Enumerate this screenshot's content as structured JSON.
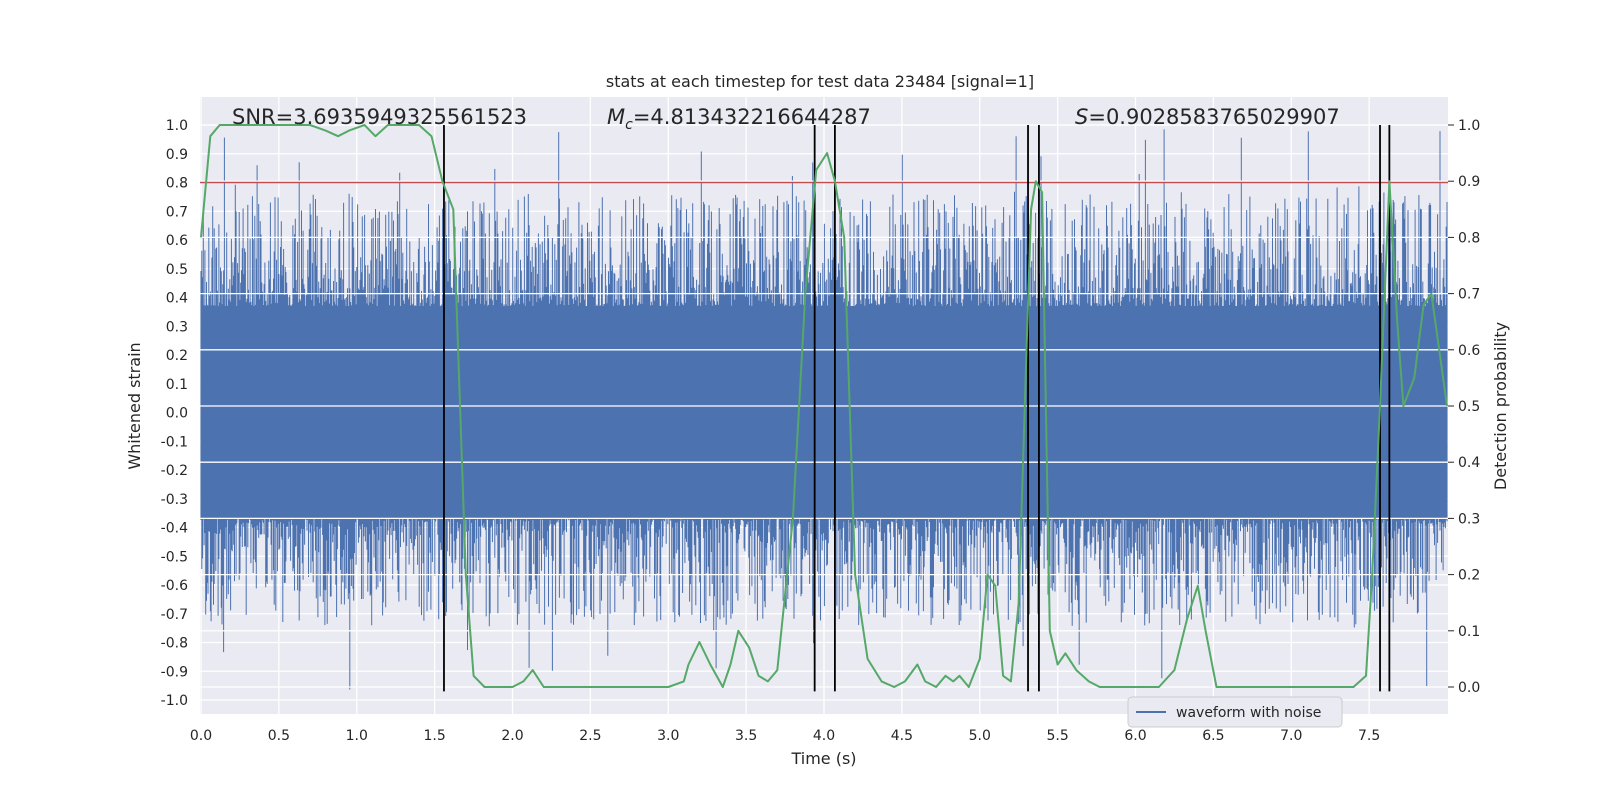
{
  "chart_data": {
    "type": "line",
    "title": "stats at each timestep for test data 23484 [signal=1]",
    "xlabel": "Time (s)",
    "ylabel": "Whitened strain",
    "y2label": "Detection probability",
    "xlim": [
      0.0,
      8.0
    ],
    "ylim": [
      -1.1,
      1.1
    ],
    "y2lim": [
      -0.05,
      1.05
    ],
    "xticks": [
      0.0,
      0.5,
      1.0,
      1.5,
      2.0,
      2.5,
      3.0,
      3.5,
      4.0,
      4.5,
      5.0,
      5.5,
      6.0,
      6.5,
      7.0,
      7.5
    ],
    "xtick_labels": [
      "0.0",
      "0.5",
      "1.0",
      "1.5",
      "2.0",
      "2.5",
      "3.0",
      "3.5",
      "4.0",
      "4.5",
      "5.0",
      "5.5",
      "6.0",
      "6.5",
      "7.0",
      "7.5"
    ],
    "yticks": [
      1.0,
      0.9,
      0.8,
      0.7,
      0.6,
      0.5,
      0.4,
      0.3,
      0.2,
      0.1,
      0.0,
      -0.1,
      -0.2,
      -0.3,
      -0.4,
      -0.5,
      -0.6,
      -0.7,
      -0.8,
      -0.9,
      -1.0
    ],
    "ytick_labels": [
      "1.0",
      "0.9",
      "0.8",
      "0.7",
      "0.6",
      "0.5",
      "0.4",
      "0.3",
      "0.2",
      "0.1",
      "0.0",
      "-0.1",
      "-0.2",
      "-0.3",
      "-0.4",
      "-0.5",
      "-0.6",
      "-0.7",
      "-0.8",
      "-0.9",
      "-1.0"
    ],
    "y2ticks": [
      1.0,
      0.9,
      0.8,
      0.7,
      0.6,
      0.5,
      0.4,
      0.3,
      0.2,
      0.1,
      0.0
    ],
    "y2tick_labels": [
      "1.0",
      "0.9",
      "0.8",
      "0.7",
      "0.6",
      "0.5",
      "0.4",
      "0.3",
      "0.2",
      "0.1",
      "0.0"
    ],
    "threshold": 0.8,
    "stats": {
      "snr": "SNR=3.6935949325561523",
      "mc_symbol": "M",
      "mc_sub": "c",
      "mc_value": "=4.813432216644287",
      "s_symbol": "S",
      "s_value": "=0.9028583765029907"
    },
    "event_lines": [
      1.56,
      3.94,
      4.07,
      5.31,
      5.38,
      7.57,
      7.63
    ],
    "legend": {
      "label": "waveform with noise",
      "location": "lower right"
    },
    "colors": {
      "waveform": "#4c72b0",
      "probability": "#55a868",
      "threshold": "#c44e52",
      "events": "#000000",
      "background": "#eaeaf2",
      "grid": "#ffffff"
    },
    "series": [
      {
        "name": "waveform with noise",
        "kind": "noise-band",
        "core_band": [
          -0.37,
          0.37
        ],
        "peak_range": [
          -0.97,
          1.0
        ]
      },
      {
        "name": "detection probability",
        "axis": "right",
        "x": [
          0.0,
          0.06,
          0.12,
          0.2,
          0.3,
          0.4,
          0.5,
          0.6,
          0.7,
          0.8,
          0.88,
          0.95,
          1.05,
          1.12,
          1.2,
          1.3,
          1.4,
          1.48,
          1.55,
          1.62,
          1.7,
          1.75,
          1.82,
          1.9,
          2.0,
          2.07,
          2.13,
          2.2,
          2.27,
          2.35,
          2.45,
          2.55,
          2.7,
          2.85,
          3.0,
          3.1,
          3.13,
          3.2,
          3.27,
          3.35,
          3.4,
          3.45,
          3.52,
          3.58,
          3.64,
          3.7,
          3.8,
          3.88,
          3.95,
          4.02,
          4.07,
          4.13,
          4.2,
          4.28,
          4.37,
          4.45,
          4.52,
          4.6,
          4.65,
          4.72,
          4.78,
          4.83,
          4.87,
          4.93,
          5.0,
          5.05,
          5.1,
          5.15,
          5.2,
          5.25,
          5.3,
          5.33,
          5.36,
          5.4,
          5.45,
          5.5,
          5.55,
          5.62,
          5.7,
          5.77,
          5.85,
          5.95,
          6.05,
          6.15,
          6.25,
          6.33,
          6.4,
          6.45,
          6.52,
          6.6,
          6.68,
          6.75,
          6.85,
          7.0,
          7.15,
          7.3,
          7.4,
          7.48,
          7.52,
          7.57,
          7.63,
          7.68,
          7.72,
          7.79,
          7.85,
          7.9,
          8.0
        ],
        "y": [
          0.8,
          0.98,
          1.0,
          1.0,
          1.0,
          1.0,
          1.0,
          1.0,
          1.0,
          0.99,
          0.98,
          0.99,
          1.0,
          0.98,
          1.0,
          1.0,
          1.0,
          0.98,
          0.9,
          0.85,
          0.2,
          0.02,
          0.0,
          0.0,
          0.0,
          0.01,
          0.03,
          0.0,
          0.0,
          0.0,
          0.0,
          0.0,
          0.0,
          0.0,
          0.0,
          0.01,
          0.04,
          0.08,
          0.04,
          0.0,
          0.04,
          0.1,
          0.07,
          0.02,
          0.01,
          0.03,
          0.3,
          0.7,
          0.92,
          0.95,
          0.9,
          0.8,
          0.2,
          0.05,
          0.01,
          0.0,
          0.01,
          0.04,
          0.01,
          0.0,
          0.02,
          0.01,
          0.02,
          0.0,
          0.05,
          0.2,
          0.18,
          0.02,
          0.01,
          0.15,
          0.6,
          0.85,
          0.9,
          0.88,
          0.1,
          0.04,
          0.06,
          0.03,
          0.01,
          0.0,
          0.0,
          0.0,
          0.0,
          0.0,
          0.03,
          0.12,
          0.18,
          0.1,
          0.0,
          0.0,
          0.0,
          0.0,
          0.0,
          0.0,
          0.0,
          0.0,
          0.0,
          0.02,
          0.2,
          0.5,
          0.9,
          0.65,
          0.5,
          0.55,
          0.68,
          0.7,
          0.5
        ]
      }
    ]
  }
}
